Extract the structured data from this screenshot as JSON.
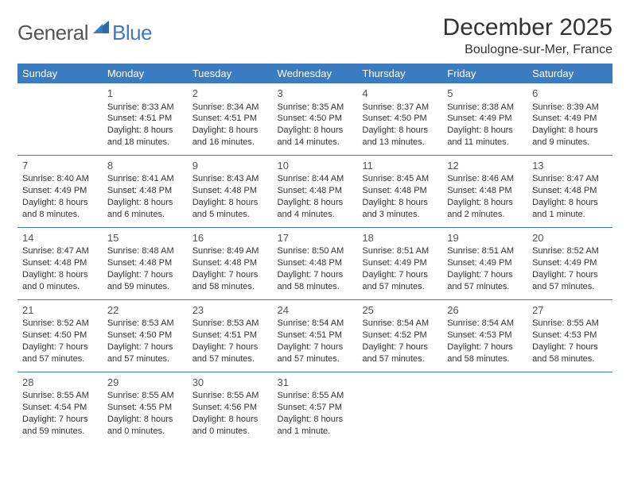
{
  "logo": {
    "general": "General",
    "blue": "Blue"
  },
  "header": {
    "month_title": "December 2025",
    "location": "Boulogne-sur-Mer, France"
  },
  "colors": {
    "header_bg": "#3b7bbf",
    "header_fg": "#ffffff",
    "grid_line": "#3b7bbf",
    "text": "#333333",
    "logo_gray": "#555555",
    "logo_blue": "#3b7bbf",
    "background": "#ffffff"
  },
  "day_headers": [
    "Sunday",
    "Monday",
    "Tuesday",
    "Wednesday",
    "Thursday",
    "Friday",
    "Saturday"
  ],
  "weeks": [
    [
      null,
      {
        "n": "1",
        "sr": "Sunrise: 8:33 AM",
        "ss": "Sunset: 4:51 PM",
        "d1": "Daylight: 8 hours",
        "d2": "and 18 minutes."
      },
      {
        "n": "2",
        "sr": "Sunrise: 8:34 AM",
        "ss": "Sunset: 4:51 PM",
        "d1": "Daylight: 8 hours",
        "d2": "and 16 minutes."
      },
      {
        "n": "3",
        "sr": "Sunrise: 8:35 AM",
        "ss": "Sunset: 4:50 PM",
        "d1": "Daylight: 8 hours",
        "d2": "and 14 minutes."
      },
      {
        "n": "4",
        "sr": "Sunrise: 8:37 AM",
        "ss": "Sunset: 4:50 PM",
        "d1": "Daylight: 8 hours",
        "d2": "and 13 minutes."
      },
      {
        "n": "5",
        "sr": "Sunrise: 8:38 AM",
        "ss": "Sunset: 4:49 PM",
        "d1": "Daylight: 8 hours",
        "d2": "and 11 minutes."
      },
      {
        "n": "6",
        "sr": "Sunrise: 8:39 AM",
        "ss": "Sunset: 4:49 PM",
        "d1": "Daylight: 8 hours",
        "d2": "and 9 minutes."
      }
    ],
    [
      {
        "n": "7",
        "sr": "Sunrise: 8:40 AM",
        "ss": "Sunset: 4:49 PM",
        "d1": "Daylight: 8 hours",
        "d2": "and 8 minutes."
      },
      {
        "n": "8",
        "sr": "Sunrise: 8:41 AM",
        "ss": "Sunset: 4:48 PM",
        "d1": "Daylight: 8 hours",
        "d2": "and 6 minutes."
      },
      {
        "n": "9",
        "sr": "Sunrise: 8:43 AM",
        "ss": "Sunset: 4:48 PM",
        "d1": "Daylight: 8 hours",
        "d2": "and 5 minutes."
      },
      {
        "n": "10",
        "sr": "Sunrise: 8:44 AM",
        "ss": "Sunset: 4:48 PM",
        "d1": "Daylight: 8 hours",
        "d2": "and 4 minutes."
      },
      {
        "n": "11",
        "sr": "Sunrise: 8:45 AM",
        "ss": "Sunset: 4:48 PM",
        "d1": "Daylight: 8 hours",
        "d2": "and 3 minutes."
      },
      {
        "n": "12",
        "sr": "Sunrise: 8:46 AM",
        "ss": "Sunset: 4:48 PM",
        "d1": "Daylight: 8 hours",
        "d2": "and 2 minutes."
      },
      {
        "n": "13",
        "sr": "Sunrise: 8:47 AM",
        "ss": "Sunset: 4:48 PM",
        "d1": "Daylight: 8 hours",
        "d2": "and 1 minute."
      }
    ],
    [
      {
        "n": "14",
        "sr": "Sunrise: 8:47 AM",
        "ss": "Sunset: 4:48 PM",
        "d1": "Daylight: 8 hours",
        "d2": "and 0 minutes."
      },
      {
        "n": "15",
        "sr": "Sunrise: 8:48 AM",
        "ss": "Sunset: 4:48 PM",
        "d1": "Daylight: 7 hours",
        "d2": "and 59 minutes."
      },
      {
        "n": "16",
        "sr": "Sunrise: 8:49 AM",
        "ss": "Sunset: 4:48 PM",
        "d1": "Daylight: 7 hours",
        "d2": "and 58 minutes."
      },
      {
        "n": "17",
        "sr": "Sunrise: 8:50 AM",
        "ss": "Sunset: 4:48 PM",
        "d1": "Daylight: 7 hours",
        "d2": "and 58 minutes."
      },
      {
        "n": "18",
        "sr": "Sunrise: 8:51 AM",
        "ss": "Sunset: 4:49 PM",
        "d1": "Daylight: 7 hours",
        "d2": "and 57 minutes."
      },
      {
        "n": "19",
        "sr": "Sunrise: 8:51 AM",
        "ss": "Sunset: 4:49 PM",
        "d1": "Daylight: 7 hours",
        "d2": "and 57 minutes."
      },
      {
        "n": "20",
        "sr": "Sunrise: 8:52 AM",
        "ss": "Sunset: 4:49 PM",
        "d1": "Daylight: 7 hours",
        "d2": "and 57 minutes."
      }
    ],
    [
      {
        "n": "21",
        "sr": "Sunrise: 8:52 AM",
        "ss": "Sunset: 4:50 PM",
        "d1": "Daylight: 7 hours",
        "d2": "and 57 minutes."
      },
      {
        "n": "22",
        "sr": "Sunrise: 8:53 AM",
        "ss": "Sunset: 4:50 PM",
        "d1": "Daylight: 7 hours",
        "d2": "and 57 minutes."
      },
      {
        "n": "23",
        "sr": "Sunrise: 8:53 AM",
        "ss": "Sunset: 4:51 PM",
        "d1": "Daylight: 7 hours",
        "d2": "and 57 minutes."
      },
      {
        "n": "24",
        "sr": "Sunrise: 8:54 AM",
        "ss": "Sunset: 4:51 PM",
        "d1": "Daylight: 7 hours",
        "d2": "and 57 minutes."
      },
      {
        "n": "25",
        "sr": "Sunrise: 8:54 AM",
        "ss": "Sunset: 4:52 PM",
        "d1": "Daylight: 7 hours",
        "d2": "and 57 minutes."
      },
      {
        "n": "26",
        "sr": "Sunrise: 8:54 AM",
        "ss": "Sunset: 4:53 PM",
        "d1": "Daylight: 7 hours",
        "d2": "and 58 minutes."
      },
      {
        "n": "27",
        "sr": "Sunrise: 8:55 AM",
        "ss": "Sunset: 4:53 PM",
        "d1": "Daylight: 7 hours",
        "d2": "and 58 minutes."
      }
    ],
    [
      {
        "n": "28",
        "sr": "Sunrise: 8:55 AM",
        "ss": "Sunset: 4:54 PM",
        "d1": "Daylight: 7 hours",
        "d2": "and 59 minutes."
      },
      {
        "n": "29",
        "sr": "Sunrise: 8:55 AM",
        "ss": "Sunset: 4:55 PM",
        "d1": "Daylight: 8 hours",
        "d2": "and 0 minutes."
      },
      {
        "n": "30",
        "sr": "Sunrise: 8:55 AM",
        "ss": "Sunset: 4:56 PM",
        "d1": "Daylight: 8 hours",
        "d2": "and 0 minutes."
      },
      {
        "n": "31",
        "sr": "Sunrise: 8:55 AM",
        "ss": "Sunset: 4:57 PM",
        "d1": "Daylight: 8 hours",
        "d2": "and 1 minute."
      },
      null,
      null,
      null
    ]
  ]
}
